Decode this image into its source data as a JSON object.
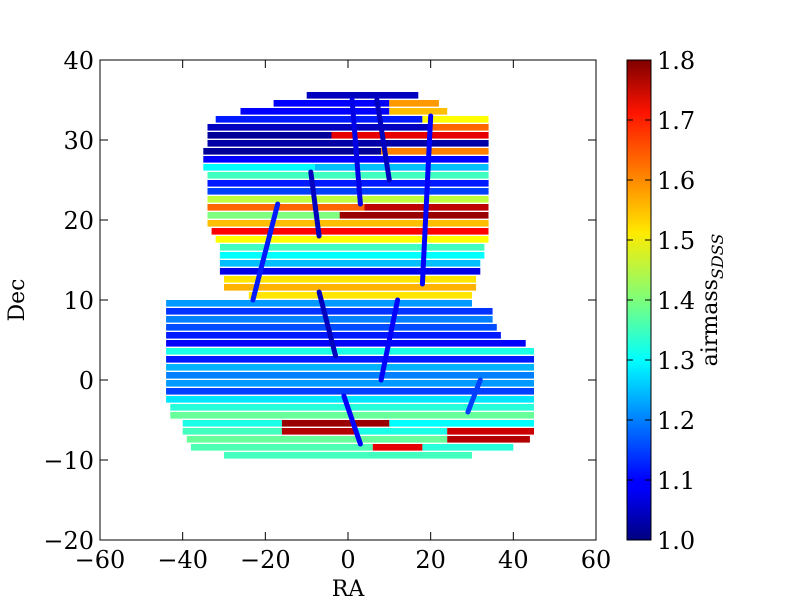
{
  "chart_data": {
    "type": "scatter",
    "title": "",
    "xlabel": "RA",
    "ylabel": "Dec",
    "xlim": [
      -60,
      60
    ],
    "ylim": [
      -20,
      40
    ],
    "xticks": [
      -60,
      -40,
      -20,
      0,
      20,
      40,
      60
    ],
    "xtick_labels": [
      "−60",
      "−40",
      "−20",
      "0",
      "20",
      "40",
      "60"
    ],
    "yticks": [
      -20,
      -10,
      0,
      10,
      20,
      30,
      40
    ],
    "ytick_labels": [
      "−20",
      "−10",
      "0",
      "10",
      "20",
      "30",
      "40"
    ],
    "grid": false,
    "colorbar": {
      "label": "airmass",
      "label_subscript": "SDSS",
      "range": [
        1.0,
        1.8
      ],
      "ticks": [
        1.0,
        1.1,
        1.2,
        1.3,
        1.4,
        1.5,
        1.6,
        1.7,
        1.8
      ],
      "tick_labels": [
        "1.0",
        "1.1",
        "1.2",
        "1.3",
        "1.4",
        "1.5",
        "1.6",
        "1.7",
        "1.8"
      ],
      "colormap": "jet"
    },
    "stripes": [
      {
        "dec": 35.5,
        "ra_min": -10,
        "ra_max": 17,
        "airmass": 1.05
      },
      {
        "dec": 34.5,
        "ra_min": -18,
        "ra_max": 10,
        "airmass": 1.1
      },
      {
        "dec": 34.5,
        "ra_min": 10,
        "ra_max": 22,
        "airmass": 1.58
      },
      {
        "dec": 33.5,
        "ra_min": -26,
        "ra_max": 10,
        "airmass": 1.1
      },
      {
        "dec": 33.5,
        "ra_min": 10,
        "ra_max": 24,
        "airmass": 1.55
      },
      {
        "dec": 32.5,
        "ra_min": -32,
        "ra_max": 18,
        "airmass": 1.12
      },
      {
        "dec": 32.5,
        "ra_min": 18,
        "ra_max": 34,
        "airmass": 1.5
      },
      {
        "dec": 31.5,
        "ra_min": -34,
        "ra_max": 20,
        "airmass": 1.05
      },
      {
        "dec": 31.5,
        "ra_min": 20,
        "ra_max": 34,
        "airmass": 1.62
      },
      {
        "dec": 30.5,
        "ra_min": -34,
        "ra_max": -4,
        "airmass": 1.02
      },
      {
        "dec": 30.5,
        "ra_min": -4,
        "ra_max": 34,
        "airmass": 1.72
      },
      {
        "dec": 29.5,
        "ra_min": -34,
        "ra_max": 34,
        "airmass": 1.03
      },
      {
        "dec": 28.5,
        "ra_min": -35,
        "ra_max": 8,
        "airmass": 1.02
      },
      {
        "dec": 28.5,
        "ra_min": 8,
        "ra_max": 34,
        "airmass": 1.6
      },
      {
        "dec": 27.5,
        "ra_min": -35,
        "ra_max": 34,
        "airmass": 1.1
      },
      {
        "dec": 26.5,
        "ra_min": -35,
        "ra_max": -8,
        "airmass": 1.3
      },
      {
        "dec": 26.5,
        "ra_min": -8,
        "ra_max": 34,
        "airmass": 1.25
      },
      {
        "dec": 25.5,
        "ra_min": -34,
        "ra_max": 34,
        "airmass": 1.35
      },
      {
        "dec": 24.5,
        "ra_min": -34,
        "ra_max": 34,
        "airmass": 1.12
      },
      {
        "dec": 23.5,
        "ra_min": -34,
        "ra_max": 34,
        "airmass": 1.15
      },
      {
        "dec": 22.5,
        "ra_min": -34,
        "ra_max": 34,
        "airmass": 1.45
      },
      {
        "dec": 21.5,
        "ra_min": -34,
        "ra_max": 4,
        "airmass": 1.62
      },
      {
        "dec": 21.5,
        "ra_min": 4,
        "ra_max": 34,
        "airmass": 1.75
      },
      {
        "dec": 20.5,
        "ra_min": -34,
        "ra_max": -2,
        "airmass": 1.4
      },
      {
        "dec": 20.5,
        "ra_min": -2,
        "ra_max": 34,
        "airmass": 1.78
      },
      {
        "dec": 19.5,
        "ra_min": -34,
        "ra_max": 34,
        "airmass": 1.55
      },
      {
        "dec": 18.5,
        "ra_min": -33,
        "ra_max": 34,
        "airmass": 1.7
      },
      {
        "dec": 17.5,
        "ra_min": -32,
        "ra_max": 34,
        "airmass": 1.5
      },
      {
        "dec": 16.5,
        "ra_min": -31,
        "ra_max": 33,
        "airmass": 1.35
      },
      {
        "dec": 15.5,
        "ra_min": -31,
        "ra_max": 33,
        "airmass": 1.3
      },
      {
        "dec": 14.5,
        "ra_min": -31,
        "ra_max": 32,
        "airmass": 1.25
      },
      {
        "dec": 13.5,
        "ra_min": -31,
        "ra_max": 32,
        "airmass": 1.08
      },
      {
        "dec": 12.5,
        "ra_min": -30,
        "ra_max": 31,
        "airmass": 1.52
      },
      {
        "dec": 11.5,
        "ra_min": -30,
        "ra_max": 31,
        "airmass": 1.56
      },
      {
        "dec": 10.5,
        "ra_min": -24,
        "ra_max": 30,
        "airmass": 1.52
      },
      {
        "dec": 9.5,
        "ra_min": -44,
        "ra_max": 30,
        "airmass": 1.22
      },
      {
        "dec": 8.5,
        "ra_min": -44,
        "ra_max": 35,
        "airmass": 1.14
      },
      {
        "dec": 7.5,
        "ra_min": -44,
        "ra_max": 35,
        "airmass": 1.2
      },
      {
        "dec": 6.5,
        "ra_min": -44,
        "ra_max": 36,
        "airmass": 1.16
      },
      {
        "dec": 5.5,
        "ra_min": -44,
        "ra_max": 37,
        "airmass": 1.12
      },
      {
        "dec": 4.5,
        "ra_min": -44,
        "ra_max": 43,
        "airmass": 1.1
      },
      {
        "dec": 3.5,
        "ra_min": -44,
        "ra_max": 45,
        "airmass": 1.32
      },
      {
        "dec": 2.5,
        "ra_min": -44,
        "ra_max": 45,
        "airmass": 1.12
      },
      {
        "dec": 1.5,
        "ra_min": -44,
        "ra_max": 45,
        "airmass": 1.24
      },
      {
        "dec": 0.5,
        "ra_min": -44,
        "ra_max": 45,
        "airmass": 1.2
      },
      {
        "dec": -0.5,
        "ra_min": -44,
        "ra_max": 45,
        "airmass": 1.22
      },
      {
        "dec": -1.5,
        "ra_min": -44,
        "ra_max": 45,
        "airmass": 1.15
      },
      {
        "dec": -2.5,
        "ra_min": -44,
        "ra_max": 45,
        "airmass": 1.28
      },
      {
        "dec": -3.5,
        "ra_min": -43,
        "ra_max": 45,
        "airmass": 1.33
      },
      {
        "dec": -4.5,
        "ra_min": -43,
        "ra_max": 45,
        "airmass": 1.38
      },
      {
        "dec": -5.5,
        "ra_min": -40,
        "ra_max": -16,
        "airmass": 1.32
      },
      {
        "dec": -5.5,
        "ra_min": -16,
        "ra_max": 10,
        "airmass": 1.78
      },
      {
        "dec": -5.5,
        "ra_min": 10,
        "ra_max": 45,
        "airmass": 1.3
      },
      {
        "dec": -6.5,
        "ra_min": -40,
        "ra_max": -16,
        "airmass": 1.35
      },
      {
        "dec": -6.5,
        "ra_min": -16,
        "ra_max": 2,
        "airmass": 1.76
      },
      {
        "dec": -6.5,
        "ra_min": 2,
        "ra_max": 24,
        "airmass": 1.32
      },
      {
        "dec": -6.5,
        "ra_min": 24,
        "ra_max": 45,
        "airmass": 1.74
      },
      {
        "dec": -7.5,
        "ra_min": -39,
        "ra_max": 24,
        "airmass": 1.38
      },
      {
        "dec": -7.5,
        "ra_min": 24,
        "ra_max": 44,
        "airmass": 1.76
      },
      {
        "dec": -8.5,
        "ra_min": -38,
        "ra_max": 6,
        "airmass": 1.36
      },
      {
        "dec": -8.5,
        "ra_min": 6,
        "ra_max": 18,
        "airmass": 1.72
      },
      {
        "dec": -8.5,
        "ra_min": 18,
        "ra_max": 40,
        "airmass": 1.33
      },
      {
        "dec": -9.5,
        "ra_min": -30,
        "ra_max": 30,
        "airmass": 1.35
      }
    ],
    "streaks": [
      {
        "ra_top": -17,
        "dec_top": 22,
        "ra_bottom": -23,
        "dec_bottom": 10,
        "airmass": 1.12
      },
      {
        "ra_top": -9,
        "dec_top": 26,
        "ra_bottom": -7,
        "dec_bottom": 18,
        "airmass": 1.05
      },
      {
        "ra_top": 1,
        "dec_top": 35,
        "ra_bottom": 3,
        "dec_bottom": 22,
        "airmass": 1.08
      },
      {
        "ra_top": 7,
        "dec_top": 35,
        "ra_bottom": 10,
        "dec_bottom": 25,
        "airmass": 1.05
      },
      {
        "ra_top": 20,
        "dec_top": 33,
        "ra_bottom": 18,
        "dec_bottom": 12,
        "airmass": 1.1
      },
      {
        "ra_top": -7,
        "dec_top": 11,
        "ra_bottom": -3,
        "dec_bottom": 3,
        "airmass": 1.05
      },
      {
        "ra_top": 12,
        "dec_top": 10,
        "ra_bottom": 8,
        "dec_bottom": 0,
        "airmass": 1.1
      },
      {
        "ra_top": -1,
        "dec_top": -2,
        "ra_bottom": 3,
        "dec_bottom": -8,
        "airmass": 1.1
      },
      {
        "ra_top": 32,
        "dec_top": 0,
        "ra_bottom": 29,
        "dec_bottom": -4,
        "airmass": 1.15
      }
    ]
  }
}
